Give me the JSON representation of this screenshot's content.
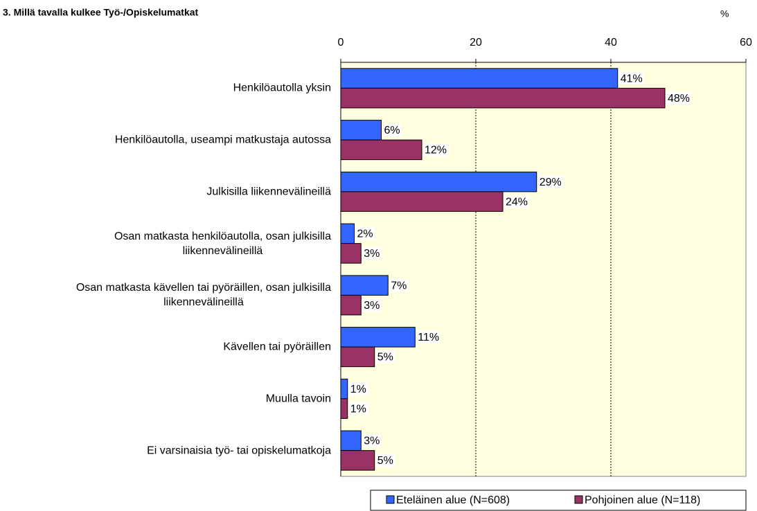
{
  "chart_data": {
    "type": "hbar",
    "title": "3. Millä tavalla kulkee Työ-/Opiskelumatkat",
    "unit_label": "%",
    "categories": [
      "Henkilöautolla yksin",
      "Henkilöautolla, useampi matkustaja autossa",
      "Julkisilla liikennevälineillä",
      "Osan matkasta henkilöautolla, osan julkisilla\nliikennevälineillä",
      "Osan matkasta kävellen tai pyöräillen, osan julkisilla\nliikennevälineillä",
      "Kävellen tai pyöräillen",
      "Muulla tavoin",
      "Ei varsinaisia työ- tai opiskelumatkoja"
    ],
    "series": [
      {
        "name": "Eteläinen alue (N=608)",
        "color": "#3366ff",
        "values": [
          41,
          6,
          29,
          2,
          7,
          11,
          1,
          3
        ],
        "value_labels": [
          "41%",
          "6%",
          "29%",
          "2%",
          "7%",
          "11%",
          "1%",
          "3%"
        ]
      },
      {
        "name": "Pohjoinen alue (N=118)",
        "color": "#993366",
        "values": [
          48,
          12,
          24,
          3,
          3,
          5,
          1,
          5
        ],
        "value_labels": [
          "48%",
          "12%",
          "24%",
          "3%",
          "3%",
          "5%",
          "1%",
          "5%"
        ]
      }
    ],
    "xlim": [
      0,
      60
    ],
    "xticks": [
      0,
      20,
      40,
      60
    ],
    "grid": true,
    "plot_background": "#ffffe0",
    "legend": "bottom-right"
  }
}
